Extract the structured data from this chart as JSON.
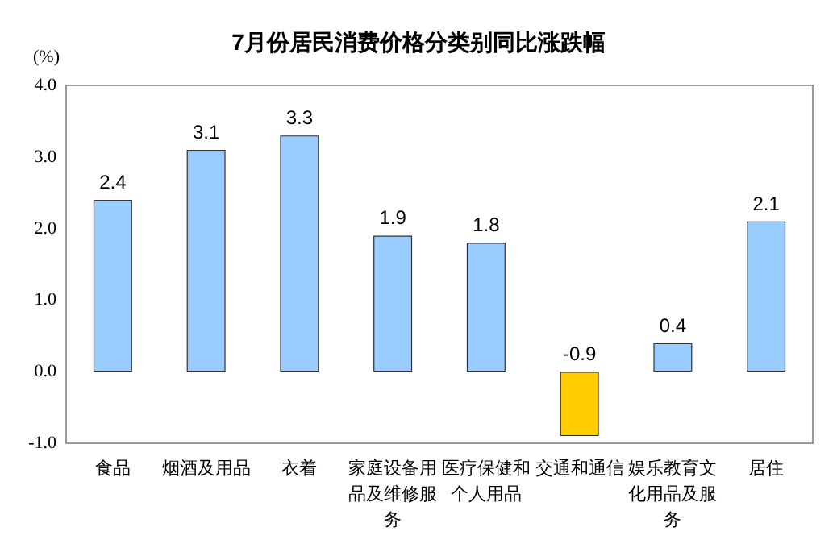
{
  "chart_data": {
    "type": "bar",
    "title": "7月份居民消费价格分类别同比涨跌幅",
    "ylabel": "(%)",
    "categories": [
      "食品",
      "烟酒及用品",
      "衣着",
      "家庭设备用品及维修服务",
      "医疗保健和个人用品",
      "交通和通信",
      "娱乐教育文化用品及服务",
      "居住"
    ],
    "values": [
      2.4,
      3.1,
      3.3,
      1.9,
      1.8,
      -0.9,
      0.4,
      2.1
    ],
    "colors": [
      "#99ccff",
      "#99ccff",
      "#99ccff",
      "#99ccff",
      "#99ccff",
      "#ffcc00",
      "#99ccff",
      "#99ccff"
    ],
    "ylim": [
      -1.0,
      4.0
    ],
    "yticks": [
      {
        "value": -1,
        "label": "-1.0"
      },
      {
        "value": 0,
        "label": "0.0"
      },
      {
        "value": 1,
        "label": "1.0"
      },
      {
        "value": 2,
        "label": "2.0"
      },
      {
        "value": 3,
        "label": "3.0"
      },
      {
        "value": 4,
        "label": "4.0"
      }
    ],
    "grid": false,
    "data_labels": true
  }
}
